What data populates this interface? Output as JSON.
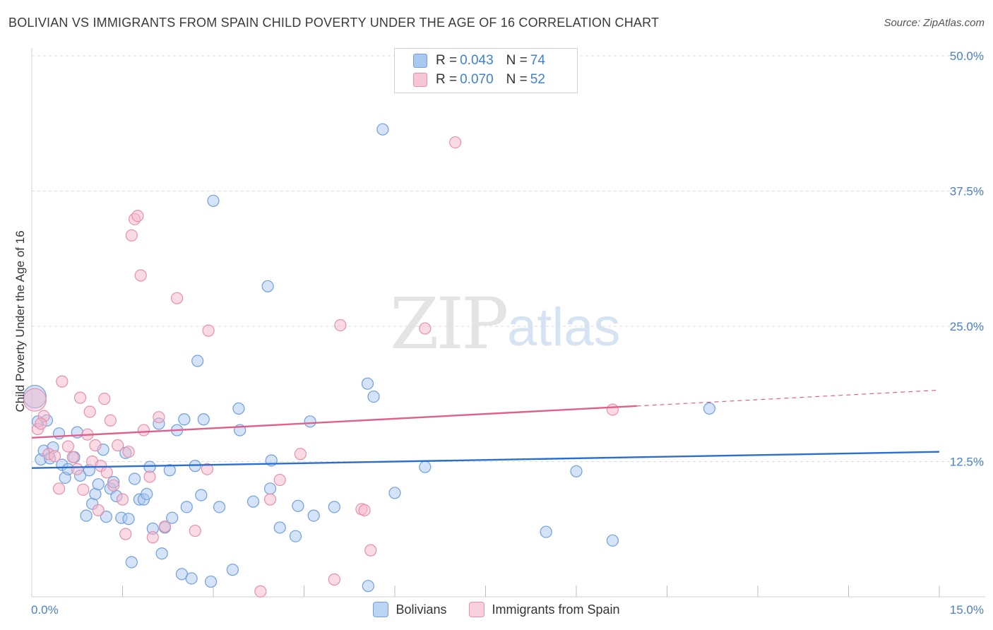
{
  "header": {
    "title": "BOLIVIAN VS IMMIGRANTS FROM SPAIN CHILD POVERTY UNDER THE AGE OF 16 CORRELATION CHART",
    "source": "Source: ZipAtlas.com"
  },
  "watermark": {
    "zip": "ZIP",
    "atlas": "atlas"
  },
  "legend": {
    "rows": [
      {
        "r_label": "R =",
        "r_value": "0.043",
        "n_label": "N =",
        "n_value": "74"
      },
      {
        "r_label": "R =",
        "r_value": "0.070",
        "n_label": "N =",
        "n_value": "52"
      }
    ]
  },
  "bottom_legend": {
    "series1": "Bolivians",
    "series2": "Immigrants from Spain"
  },
  "colors": {
    "blue_fill": "#a9c8f0",
    "blue_stroke": "#6f9fdc",
    "blue_line": "#2a6fcf",
    "pink_fill": "#f6b8cb",
    "pink_stroke": "#e690ab",
    "pink_line": "#e0608d",
    "grid": "#dcdcdc",
    "tick_text": "#4a7fc9"
  },
  "chart_data": {
    "type": "scatter",
    "title": "BOLIVIAN VS IMMIGRANTS FROM SPAIN CHILD POVERTY UNDER THE AGE OF 16 CORRELATION CHART",
    "xlabel": "",
    "ylabel": "Child Poverty Under the Age of 16",
    "xlim": [
      0,
      15
    ],
    "ylim": [
      0,
      50
    ],
    "x_tick_labels": [
      "0.0%",
      "15.0%"
    ],
    "y_ticks": [
      12.5,
      25.0,
      37.5,
      50.0
    ],
    "y_tick_labels": [
      "12.5%",
      "25.0%",
      "37.5%",
      "50.0%"
    ],
    "grid": true,
    "series": [
      {
        "name": "Bolivians",
        "r": 0.043,
        "n": 74,
        "trend": {
          "x": [
            0,
            15
          ],
          "y": [
            11.9,
            13.4
          ],
          "dashed_from": null
        },
        "points": [
          [
            0.05,
            18.5
          ],
          [
            0.1,
            16.2
          ],
          [
            0.15,
            12.7
          ],
          [
            0.2,
            13.5
          ],
          [
            0.25,
            16.3
          ],
          [
            0.3,
            12.8
          ],
          [
            0.35,
            13.8
          ],
          [
            0.45,
            15.1
          ],
          [
            0.5,
            12.2
          ],
          [
            0.55,
            11.0
          ],
          [
            0.6,
            11.8
          ],
          [
            0.7,
            12.9
          ],
          [
            0.75,
            15.2
          ],
          [
            0.8,
            11.2
          ],
          [
            0.9,
            7.5
          ],
          [
            0.95,
            11.7
          ],
          [
            1.0,
            8.6
          ],
          [
            1.05,
            9.5
          ],
          [
            1.1,
            10.4
          ],
          [
            1.18,
            13.6
          ],
          [
            1.23,
            7.4
          ],
          [
            1.3,
            10.0
          ],
          [
            1.35,
            10.6
          ],
          [
            1.4,
            9.3
          ],
          [
            1.48,
            7.3
          ],
          [
            1.55,
            13.3
          ],
          [
            1.6,
            7.2
          ],
          [
            1.65,
            3.2
          ],
          [
            1.7,
            10.9
          ],
          [
            1.78,
            9.0
          ],
          [
            1.85,
            9.0
          ],
          [
            1.9,
            9.5
          ],
          [
            1.95,
            12.0
          ],
          [
            2.0,
            6.3
          ],
          [
            2.1,
            16.0
          ],
          [
            2.15,
            4.0
          ],
          [
            2.2,
            6.4
          ],
          [
            2.28,
            11.7
          ],
          [
            2.32,
            7.3
          ],
          [
            2.4,
            15.4
          ],
          [
            2.48,
            2.1
          ],
          [
            2.52,
            16.4
          ],
          [
            2.56,
            8.3
          ],
          [
            2.64,
            1.7
          ],
          [
            2.7,
            12.1
          ],
          [
            2.74,
            21.8
          ],
          [
            2.8,
            9.4
          ],
          [
            2.84,
            16.4
          ],
          [
            2.96,
            1.4
          ],
          [
            3.0,
            36.6
          ],
          [
            3.1,
            8.3
          ],
          [
            3.32,
            2.5
          ],
          [
            3.42,
            17.4
          ],
          [
            3.44,
            15.4
          ],
          [
            3.66,
            8.8
          ],
          [
            3.9,
            28.7
          ],
          [
            3.94,
            10.0
          ],
          [
            3.96,
            12.6
          ],
          [
            4.1,
            6.4
          ],
          [
            4.36,
            5.6
          ],
          [
            4.4,
            8.4
          ],
          [
            4.6,
            16.2
          ],
          [
            4.66,
            7.5
          ],
          [
            5.0,
            8.3
          ],
          [
            5.55,
            19.7
          ],
          [
            5.65,
            18.5
          ],
          [
            5.56,
            1.0
          ],
          [
            5.8,
            43.2
          ],
          [
            6.0,
            9.6
          ],
          [
            6.5,
            12.0
          ],
          [
            8.5,
            6.0
          ],
          [
            9.0,
            11.6
          ],
          [
            9.6,
            5.2
          ],
          [
            11.2,
            17.4
          ]
        ]
      },
      {
        "name": "Immigrants from Spain",
        "r": 0.07,
        "n": 52,
        "trend": {
          "x": [
            0,
            15
          ],
          "y": [
            14.7,
            19.1
          ],
          "dashed_from": 10.0
        },
        "points": [
          [
            0.05,
            18.2
          ],
          [
            0.1,
            15.5
          ],
          [
            0.2,
            16.7
          ],
          [
            0.28,
            13.2
          ],
          [
            0.38,
            13.0
          ],
          [
            0.45,
            10.0
          ],
          [
            0.5,
            19.9
          ],
          [
            0.6,
            13.9
          ],
          [
            0.68,
            12.9
          ],
          [
            0.75,
            11.8
          ],
          [
            0.8,
            18.4
          ],
          [
            0.85,
            9.9
          ],
          [
            0.92,
            15.0
          ],
          [
            0.96,
            17.1
          ],
          [
            1.0,
            12.5
          ],
          [
            1.05,
            14.0
          ],
          [
            1.1,
            8.0
          ],
          [
            1.14,
            12.1
          ],
          [
            1.2,
            18.3
          ],
          [
            1.24,
            11.5
          ],
          [
            1.3,
            16.3
          ],
          [
            1.35,
            10.3
          ],
          [
            1.42,
            14.0
          ],
          [
            1.5,
            9.0
          ],
          [
            1.55,
            5.8
          ],
          [
            1.6,
            13.4
          ],
          [
            1.65,
            33.4
          ],
          [
            1.7,
            34.9
          ],
          [
            1.75,
            35.2
          ],
          [
            1.8,
            29.7
          ],
          [
            1.85,
            15.4
          ],
          [
            1.95,
            11.1
          ],
          [
            2.0,
            5.5
          ],
          [
            2.1,
            16.6
          ],
          [
            2.2,
            6.5
          ],
          [
            2.4,
            27.6
          ],
          [
            2.7,
            6.1
          ],
          [
            2.9,
            11.8
          ],
          [
            2.92,
            24.6
          ],
          [
            3.78,
            0.5
          ],
          [
            3.94,
            9.0
          ],
          [
            4.1,
            10.8
          ],
          [
            4.44,
            13.2
          ],
          [
            5.0,
            1.6
          ],
          [
            5.1,
            25.1
          ],
          [
            5.45,
            8.1
          ],
          [
            5.5,
            8.0
          ],
          [
            5.6,
            4.3
          ],
          [
            6.5,
            24.8
          ],
          [
            7.0,
            42.0
          ],
          [
            9.6,
            17.3
          ],
          [
            0.15,
            16.0
          ]
        ]
      }
    ]
  }
}
